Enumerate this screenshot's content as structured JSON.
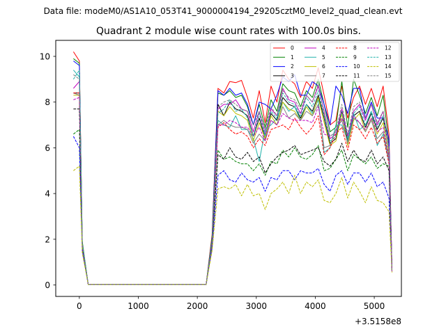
{
  "figure": {
    "suptitle": "Data file: modeM0/AS1A10_053T41_9000004194_29205cztM0_level2_quad_clean.evt"
  },
  "chart_data": {
    "type": "line",
    "title": "Quadrant 2 module wise count rates with 100.0s bins.",
    "xlabel": "",
    "ylabel": "",
    "x_offset_label": "+3.5158e8",
    "xlim": [
      -400,
      5460
    ],
    "ylim": [
      -0.5,
      10.7
    ],
    "xticks": [
      0,
      1000,
      2000,
      3000,
      4000,
      5000
    ],
    "yticks": [
      0,
      2,
      4,
      6,
      8,
      10
    ],
    "legend_position": "top-right",
    "x": [
      -100,
      0,
      50,
      150,
      250,
      350,
      450,
      550,
      650,
      750,
      850,
      950,
      1050,
      1150,
      1250,
      1350,
      1450,
      1550,
      1650,
      1750,
      1850,
      1950,
      2050,
      2150,
      2250,
      2350,
      2450,
      2550,
      2650,
      2750,
      2850,
      2950,
      3050,
      3150,
      3250,
      3350,
      3450,
      3550,
      3650,
      3750,
      3850,
      3950,
      4050,
      4150,
      4250,
      4350,
      4450,
      4550,
      4650,
      4750,
      4850,
      4950,
      5050,
      5150,
      5250,
      5300
    ],
    "series": [
      {
        "name": "0",
        "color": "#ff0000",
        "dash": false,
        "values": [
          10.2,
          9.8,
          1.8,
          0.02,
          0.02,
          0.02,
          0.02,
          0.02,
          0.02,
          0.02,
          0.02,
          0.02,
          0.02,
          0.02,
          0.02,
          0.02,
          0.02,
          0.02,
          0.02,
          0.02,
          0.02,
          0.02,
          0.02,
          0.02,
          2.2,
          8.6,
          8.4,
          8.9,
          8.85,
          8.95,
          8.2,
          7.3,
          8.5,
          7.1,
          8.7,
          8.0,
          9.4,
          9.0,
          8.8,
          8.2,
          8.9,
          8.6,
          9.5,
          8.3,
          7.0,
          7.2,
          8.7,
          7.3,
          8.2,
          8.7,
          7.9,
          8.6,
          7.8,
          8.7,
          6.6,
          0.7
        ]
      },
      {
        "name": "1",
        "color": "#008000",
        "dash": false,
        "values": [
          9.9,
          9.7,
          1.9,
          0.02,
          0.02,
          0.02,
          0.02,
          0.02,
          0.02,
          0.02,
          0.02,
          0.02,
          0.02,
          0.02,
          0.02,
          0.02,
          0.02,
          0.02,
          0.02,
          0.02,
          0.02,
          0.02,
          0.02,
          0.02,
          2.1,
          8.4,
          8.3,
          8.5,
          8.2,
          8.3,
          7.8,
          7.0,
          7.9,
          6.9,
          8.1,
          7.6,
          8.8,
          8.5,
          8.4,
          7.8,
          8.5,
          8.2,
          9.0,
          7.9,
          6.7,
          6.9,
          8.9,
          6.9,
          9.0,
          8.3,
          7.5,
          8.2,
          7.4,
          8.3,
          6.2,
          0.65
        ]
      },
      {
        "name": "2",
        "color": "#0000ff",
        "dash": false,
        "values": [
          9.8,
          9.6,
          1.8,
          0.02,
          0.02,
          0.02,
          0.02,
          0.02,
          0.02,
          0.02,
          0.02,
          0.02,
          0.02,
          0.02,
          0.02,
          0.02,
          0.02,
          0.02,
          0.02,
          0.02,
          0.02,
          0.02,
          0.02,
          0.02,
          2.0,
          8.5,
          8.3,
          8.6,
          8.3,
          8.4,
          7.9,
          7.0,
          8.0,
          7.9,
          7.7,
          8.3,
          9.1,
          8.9,
          9.2,
          8.3,
          8.3,
          8.9,
          8.7,
          7.9,
          7.0,
          8.7,
          8.3,
          7.5,
          8.6,
          8.6,
          7.3,
          8.0,
          7.3,
          7.3,
          6.4,
          0.7
        ]
      },
      {
        "name": "3",
        "color": "#000000",
        "dash": false,
        "values": [
          8.4,
          8.4,
          1.7,
          0.02,
          0.02,
          0.02,
          0.02,
          0.02,
          0.02,
          0.02,
          0.02,
          0.02,
          0.02,
          0.02,
          0.02,
          0.02,
          0.02,
          0.02,
          0.02,
          0.02,
          0.02,
          0.02,
          0.02,
          0.02,
          1.9,
          7.9,
          7.4,
          8.0,
          7.7,
          7.6,
          7.4,
          6.5,
          7.3,
          6.4,
          7.5,
          7.2,
          8.2,
          7.9,
          7.8,
          7.3,
          7.9,
          7.6,
          8.3,
          7.3,
          6.2,
          6.4,
          7.6,
          6.3,
          7.4,
          7.6,
          6.9,
          7.5,
          6.8,
          7.3,
          6.0,
          0.6
        ]
      },
      {
        "name": "4",
        "color": "#bf00bf",
        "dash": false,
        "values": [
          8.6,
          8.9,
          1.7,
          0.02,
          0.02,
          0.02,
          0.02,
          0.02,
          0.02,
          0.02,
          0.02,
          0.02,
          0.02,
          0.02,
          0.02,
          0.02,
          0.02,
          0.02,
          0.02,
          0.02,
          0.02,
          0.02,
          0.02,
          0.02,
          1.9,
          7.7,
          7.9,
          7.9,
          8.1,
          7.7,
          7.6,
          6.7,
          7.6,
          6.6,
          7.7,
          7.4,
          8.6,
          8.1,
          8.0,
          7.5,
          8.3,
          8.0,
          8.7,
          7.6,
          6.4,
          6.6,
          7.7,
          6.5,
          7.6,
          7.9,
          7.2,
          7.9,
          7.0,
          7.6,
          6.0,
          0.6
        ]
      },
      {
        "name": "5",
        "color": "#20b2aa",
        "dash": false,
        "values": [
          9.4,
          9.1,
          1.8,
          0.02,
          0.02,
          0.02,
          0.02,
          0.02,
          0.02,
          0.02,
          0.02,
          0.02,
          0.02,
          0.02,
          0.02,
          0.02,
          0.02,
          0.02,
          0.02,
          0.02,
          0.02,
          0.02,
          0.02,
          0.02,
          1.9,
          7.2,
          7.0,
          6.9,
          7.4,
          6.8,
          6.8,
          6.4,
          5.4,
          6.8,
          7.0,
          7.3,
          8.0,
          7.6,
          7.8,
          7.2,
          7.9,
          7.5,
          8.1,
          5.8,
          6.0,
          7.0,
          7.0,
          6.3,
          7.5,
          6.8,
          7.0,
          7.6,
          6.1,
          6.6,
          5.4,
          0.6
        ]
      },
      {
        "name": "6",
        "color": "#bfbf00",
        "dash": false,
        "values": [
          8.3,
          8.3,
          1.7,
          0.02,
          0.02,
          0.02,
          0.02,
          0.02,
          0.02,
          0.02,
          0.02,
          0.02,
          0.02,
          0.02,
          0.02,
          0.02,
          0.02,
          0.02,
          0.02,
          0.02,
          0.02,
          0.02,
          0.02,
          0.02,
          1.8,
          7.6,
          7.4,
          7.8,
          7.5,
          7.4,
          7.2,
          6.3,
          7.1,
          6.4,
          7.4,
          7.0,
          8.0,
          7.7,
          7.6,
          7.2,
          7.8,
          7.4,
          8.2,
          7.1,
          6.1,
          6.3,
          7.5,
          6.1,
          7.2,
          7.5,
          6.7,
          7.3,
          6.6,
          7.1,
          5.7,
          0.6
        ]
      },
      {
        "name": "7",
        "color": "#808080",
        "dash": false,
        "values": [
          8.4,
          8.3,
          1.7,
          0.02,
          0.02,
          0.02,
          0.02,
          0.02,
          0.02,
          0.02,
          0.02,
          0.02,
          0.02,
          0.02,
          0.02,
          0.02,
          0.02,
          0.02,
          0.02,
          0.02,
          0.02,
          0.02,
          0.02,
          0.02,
          1.8,
          7.0,
          7.2,
          7.0,
          6.9,
          6.9,
          6.8,
          6.2,
          6.6,
          6.3,
          7.2,
          7.0,
          7.8,
          7.3,
          7.5,
          7.2,
          7.6,
          7.4,
          7.9,
          6.0,
          6.1,
          6.8,
          7.2,
          6.2,
          7.3,
          7.1,
          6.7,
          7.2,
          6.4,
          6.7,
          5.5,
          0.6
        ]
      },
      {
        "name": "8",
        "color": "#ff0000",
        "dash": true,
        "values": [
          8.4,
          8.4,
          1.7,
          0.02,
          0.02,
          0.02,
          0.02,
          0.02,
          0.02,
          0.02,
          0.02,
          0.02,
          0.02,
          0.02,
          0.02,
          0.02,
          0.02,
          0.02,
          0.02,
          0.02,
          0.02,
          0.02,
          0.02,
          0.02,
          1.8,
          6.9,
          7.1,
          6.8,
          6.6,
          6.7,
          6.5,
          6.0,
          6.4,
          6.1,
          6.8,
          6.9,
          7.0,
          6.8,
          7.3,
          6.9,
          6.6,
          6.9,
          7.4,
          5.7,
          6.0,
          6.6,
          6.9,
          5.9,
          7.0,
          6.8,
          6.4,
          6.9,
          6.2,
          6.5,
          5.3,
          0.6
        ]
      },
      {
        "name": "9",
        "color": "#008000",
        "dash": true,
        "values": [
          6.6,
          6.8,
          1.6,
          0.02,
          0.02,
          0.02,
          0.02,
          0.02,
          0.02,
          0.02,
          0.02,
          0.02,
          0.02,
          0.02,
          0.02,
          0.02,
          0.02,
          0.02,
          0.02,
          0.02,
          0.02,
          0.02,
          0.02,
          0.02,
          1.7,
          5.9,
          5.5,
          5.6,
          5.4,
          5.3,
          5.3,
          5.0,
          5.3,
          4.8,
          5.4,
          5.3,
          5.9,
          5.6,
          6.0,
          5.6,
          5.5,
          5.7,
          6.1,
          5.0,
          5.1,
          5.5,
          5.9,
          5.0,
          5.7,
          5.5,
          5.3,
          5.6,
          5.1,
          5.3,
          5.2,
          0.6
        ]
      },
      {
        "name": "10",
        "color": "#0000ff",
        "dash": true,
        "values": [
          6.5,
          6.0,
          1.5,
          0.02,
          0.02,
          0.02,
          0.02,
          0.02,
          0.02,
          0.02,
          0.02,
          0.02,
          0.02,
          0.02,
          0.02,
          0.02,
          0.02,
          0.02,
          0.02,
          0.02,
          0.02,
          0.02,
          0.02,
          0.02,
          1.6,
          4.8,
          5.0,
          4.6,
          4.5,
          4.9,
          4.6,
          4.5,
          4.7,
          4.1,
          4.7,
          4.6,
          5.0,
          5.0,
          4.6,
          5.0,
          4.9,
          4.9,
          5.1,
          4.4,
          4.1,
          4.8,
          5.0,
          4.4,
          4.9,
          4.9,
          4.5,
          4.9,
          4.3,
          4.5,
          3.8,
          0.6
        ]
      },
      {
        "name": "11",
        "color": "#000000",
        "dash": true,
        "values": [
          7.7,
          7.7,
          1.7,
          0.02,
          0.02,
          0.02,
          0.02,
          0.02,
          0.02,
          0.02,
          0.02,
          0.02,
          0.02,
          0.02,
          0.02,
          0.02,
          0.02,
          0.02,
          0.02,
          0.02,
          0.02,
          0.02,
          0.02,
          0.02,
          1.8,
          5.7,
          5.5,
          6.0,
          5.6,
          5.5,
          5.8,
          5.4,
          5.6,
          4.9,
          5.3,
          5.6,
          5.8,
          5.9,
          6.1,
          5.7,
          5.8,
          5.9,
          6.0,
          5.4,
          5.2,
          5.5,
          6.2,
          5.4,
          5.9,
          5.5,
          5.4,
          5.9,
          5.3,
          5.6,
          5.0,
          0.6
        ]
      },
      {
        "name": "12",
        "color": "#bf00bf",
        "dash": true,
        "values": [
          8.1,
          8.2,
          1.7,
          0.02,
          0.02,
          0.02,
          0.02,
          0.02,
          0.02,
          0.02,
          0.02,
          0.02,
          0.02,
          0.02,
          0.02,
          0.02,
          0.02,
          0.02,
          0.02,
          0.02,
          0.02,
          0.02,
          0.02,
          0.02,
          1.8,
          7.0,
          7.0,
          7.2,
          7.1,
          6.9,
          6.9,
          6.5,
          6.9,
          6.3,
          7.2,
          7.0,
          7.5,
          7.3,
          7.2,
          7.2,
          7.2,
          7.1,
          7.8,
          6.6,
          6.5,
          6.7,
          7.3,
          6.6,
          7.4,
          7.1,
          6.8,
          7.3,
          6.7,
          6.9,
          5.6,
          0.6
        ]
      },
      {
        "name": "13",
        "color": "#20b2aa",
        "dash": true,
        "values": [
          9.0,
          9.4,
          1.8,
          0.02,
          0.02,
          0.02,
          0.02,
          0.02,
          0.02,
          0.02,
          0.02,
          0.02,
          0.02,
          0.02,
          0.02,
          0.02,
          0.02,
          0.02,
          0.02,
          0.02,
          0.02,
          0.02,
          0.02,
          0.02,
          1.9,
          7.5,
          7.7,
          8.1,
          7.6,
          7.7,
          7.3,
          6.5,
          7.5,
          6.5,
          7.6,
          7.3,
          8.4,
          8.0,
          7.9,
          7.4,
          8.2,
          7.8,
          8.5,
          7.4,
          6.3,
          6.5,
          7.6,
          6.4,
          7.5,
          7.8,
          7.0,
          7.6,
          6.9,
          7.4,
          5.9,
          0.6
        ]
      },
      {
        "name": "14",
        "color": "#bfbf00",
        "dash": true,
        "values": [
          5.0,
          5.2,
          1.4,
          0.02,
          0.02,
          0.02,
          0.02,
          0.02,
          0.02,
          0.02,
          0.02,
          0.02,
          0.02,
          0.02,
          0.02,
          0.02,
          0.02,
          0.02,
          0.02,
          0.02,
          0.02,
          0.02,
          0.02,
          0.02,
          1.5,
          4.2,
          4.3,
          4.2,
          4.4,
          3.9,
          4.4,
          3.9,
          4.0,
          3.3,
          4.0,
          4.2,
          4.5,
          4.0,
          4.8,
          4.0,
          4.5,
          4.3,
          4.6,
          3.7,
          3.6,
          4.0,
          4.7,
          3.8,
          4.5,
          4.1,
          3.6,
          4.3,
          3.7,
          3.6,
          3.2,
          0.55
        ]
      },
      {
        "name": "15",
        "color": "#808080",
        "dash": true,
        "values": [
          9.2,
          9.0,
          1.8,
          0.02,
          0.02,
          0.02,
          0.02,
          0.02,
          0.02,
          0.02,
          0.02,
          0.02,
          0.02,
          0.02,
          0.02,
          0.02,
          0.02,
          0.02,
          0.02,
          0.02,
          0.02,
          0.02,
          0.02,
          0.02,
          1.9,
          7.8,
          8.0,
          8.1,
          7.9,
          7.7,
          7.6,
          7.0,
          7.6,
          6.8,
          7.8,
          7.4,
          8.5,
          8.2,
          8.1,
          7.7,
          8.3,
          8.0,
          8.8,
          7.5,
          6.5,
          6.7,
          7.9,
          6.6,
          7.8,
          8.0,
          7.3,
          7.9,
          7.1,
          7.6,
          6.0,
          0.6
        ]
      }
    ]
  }
}
